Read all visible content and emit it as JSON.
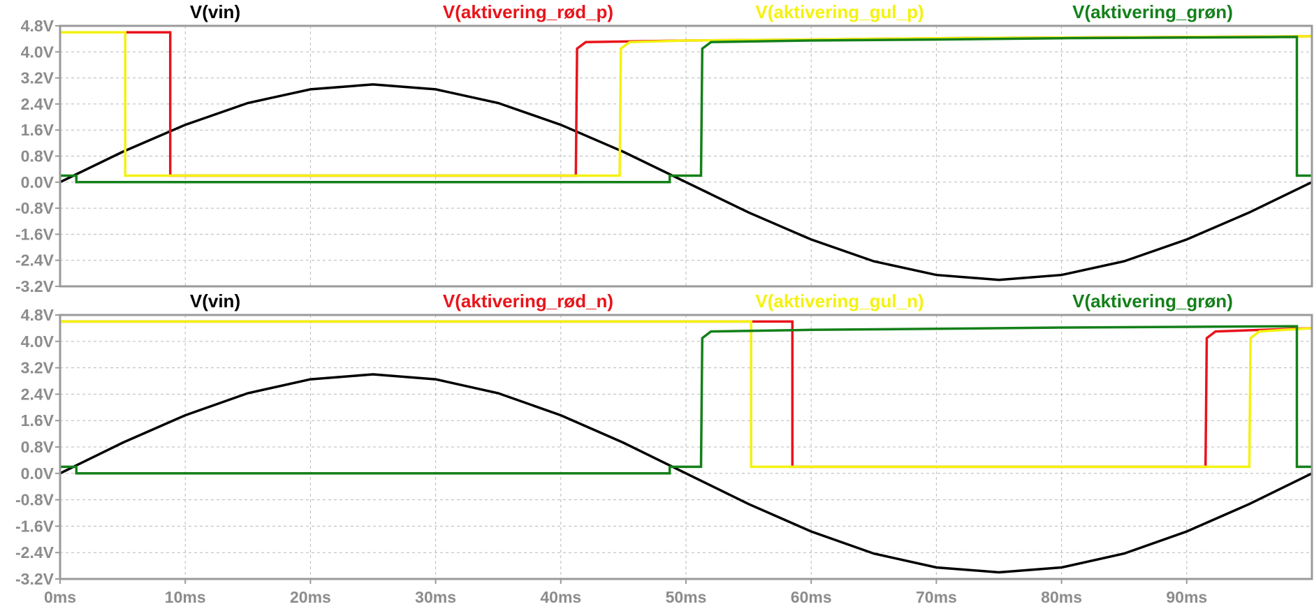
{
  "colors": {
    "vin": "#000000",
    "rod": "#e8141b",
    "gul": "#f4f20f",
    "gron": "#14801a",
    "tick": "#8c8c8c",
    "grid": "#b8b8b8"
  },
  "chart_data": [
    {
      "type": "line",
      "xlim": [
        0,
        100
      ],
      "ylim": [
        -3.2,
        4.8
      ],
      "x_unit": "ms",
      "y_unit": "V",
      "grid": true,
      "legend_placement": "top",
      "y_ticks": [
        "4.8V",
        "4.0V",
        "3.2V",
        "2.4V",
        "1.6V",
        "0.8V",
        "0.0V",
        "-0.8V",
        "-1.6V",
        "-2.4V",
        "-3.2V"
      ],
      "y_tick_values": [
        4.8,
        4.0,
        3.2,
        2.4,
        1.6,
        0.8,
        0.0,
        -0.8,
        -1.6,
        -2.4,
        -3.2
      ],
      "series": [
        {
          "name": "V(vin)",
          "color_key": "vin",
          "x": [
            0,
            5,
            10,
            15,
            20,
            25,
            30,
            35,
            40,
            45,
            50,
            55,
            60,
            65,
            70,
            75,
            80,
            85,
            90,
            95,
            100
          ],
          "y": [
            0.0,
            0.93,
            1.76,
            2.43,
            2.85,
            3.0,
            2.85,
            2.43,
            1.76,
            0.93,
            0.0,
            -0.93,
            -1.76,
            -2.43,
            -2.85,
            -3.0,
            -2.85,
            -2.43,
            -1.76,
            -0.93,
            0.0
          ]
        },
        {
          "name": "V(aktivering_rød_p)",
          "color_key": "rod",
          "x": [
            0,
            8.8,
            8.8,
            41.2,
            41.3,
            42,
            50,
            60,
            70,
            80,
            90,
            100
          ],
          "y": [
            4.6,
            4.6,
            0.2,
            0.2,
            4.1,
            4.3,
            4.35,
            4.38,
            4.42,
            4.44,
            4.46,
            4.48
          ]
        },
        {
          "name": "V(aktivering_gul_p)",
          "color_key": "gul",
          "x": [
            0,
            5.2,
            5.2,
            44.7,
            44.8,
            45.5,
            50,
            60,
            70,
            80,
            90,
            100
          ],
          "y": [
            4.6,
            4.6,
            0.2,
            0.2,
            4.1,
            4.3,
            4.35,
            4.38,
            4.42,
            4.44,
            4.46,
            4.48
          ]
        },
        {
          "name": "V(aktivering_grøn)",
          "color_key": "gron",
          "x": [
            0,
            1.3,
            1.3,
            48.7,
            48.7,
            51.2,
            51.3,
            52,
            60,
            70,
            80,
            90,
            98.8,
            98.8,
            100
          ],
          "y": [
            0.2,
            0.2,
            0.0,
            0.0,
            0.2,
            0.2,
            4.1,
            4.3,
            4.35,
            4.38,
            4.42,
            4.44,
            4.46,
            0.2,
            0.2
          ]
        }
      ]
    },
    {
      "type": "line",
      "xlim": [
        0,
        100
      ],
      "ylim": [
        -3.2,
        4.8
      ],
      "x_unit": "ms",
      "y_unit": "V",
      "grid": true,
      "legend_placement": "top",
      "y_ticks": [
        "4.8V",
        "4.0V",
        "3.2V",
        "2.4V",
        "1.6V",
        "0.8V",
        "0.0V",
        "-0.8V",
        "-1.6V",
        "-2.4V",
        "-3.2V"
      ],
      "y_tick_values": [
        4.8,
        4.0,
        3.2,
        2.4,
        1.6,
        0.8,
        0.0,
        -0.8,
        -1.6,
        -2.4,
        -3.2
      ],
      "x_ticks": [
        "0ms",
        "10ms",
        "20ms",
        "30ms",
        "40ms",
        "50ms",
        "60ms",
        "70ms",
        "80ms",
        "90ms"
      ],
      "x_tick_values": [
        0,
        10,
        20,
        30,
        40,
        50,
        60,
        70,
        80,
        90
      ],
      "series": [
        {
          "name": "V(vin)",
          "color_key": "vin",
          "x": [
            0,
            5,
            10,
            15,
            20,
            25,
            30,
            35,
            40,
            45,
            50,
            55,
            60,
            65,
            70,
            75,
            80,
            85,
            90,
            95,
            100
          ],
          "y": [
            0.0,
            0.93,
            1.76,
            2.43,
            2.85,
            3.0,
            2.85,
            2.43,
            1.76,
            0.93,
            0.0,
            -0.93,
            -1.76,
            -2.43,
            -2.85,
            -3.0,
            -2.85,
            -2.43,
            -1.76,
            -0.93,
            0.0
          ]
        },
        {
          "name": "V(aktivering_rød_n)",
          "color_key": "rod",
          "x": [
            0,
            55.2,
            55.2,
            58.5,
            58.5,
            91.5,
            91.6,
            92.3,
            100
          ],
          "y": [
            4.6,
            4.6,
            4.6,
            4.6,
            0.2,
            0.2,
            4.1,
            4.3,
            4.4
          ]
        },
        {
          "name": "V(aktivering_gul_n)",
          "color_key": "gul",
          "x": [
            0,
            55.2,
            55.2,
            95.0,
            95.1,
            95.8,
            100
          ],
          "y": [
            4.6,
            4.6,
            0.2,
            0.2,
            4.1,
            4.3,
            4.4
          ]
        },
        {
          "name": "V(aktivering_grøn)",
          "color_key": "gron",
          "x": [
            0,
            1.3,
            1.3,
            48.7,
            48.7,
            51.2,
            51.3,
            52,
            60,
            70,
            80,
            90,
            98.8,
            98.8,
            100
          ],
          "y": [
            0.2,
            0.2,
            0.0,
            0.0,
            0.2,
            0.2,
            4.1,
            4.3,
            4.35,
            4.38,
            4.42,
            4.44,
            4.46,
            0.2,
            0.2
          ]
        }
      ]
    }
  ]
}
